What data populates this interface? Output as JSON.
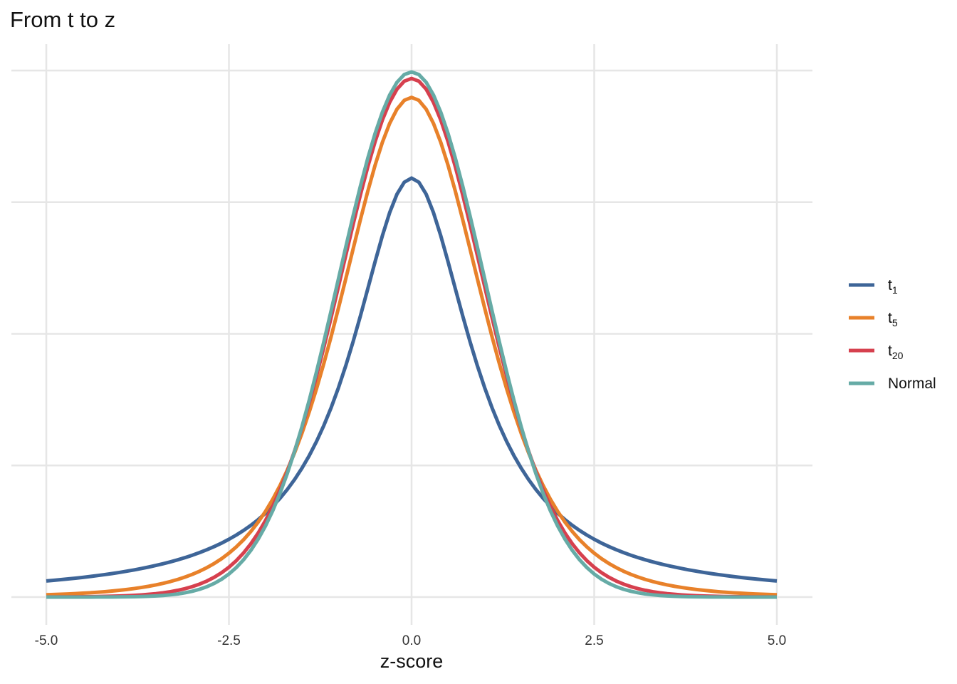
{
  "chart_data": {
    "type": "line",
    "title": "From t to z",
    "xlabel": "z-score",
    "ylabel": "",
    "xlim": [
      -5.0,
      5.0
    ],
    "ylim": [
      0,
      0.4
    ],
    "x_ticks": [
      "-5.0",
      "-2.5",
      "0.0",
      "2.5",
      "5.0"
    ],
    "y_ticks_labeled": false,
    "grid": true,
    "legend_position": "right",
    "x_range": [
      -5.0,
      5.0
    ],
    "series": [
      {
        "name": "t",
        "sub": "1",
        "dist": "t",
        "df": 1,
        "color": "#3e6598"
      },
      {
        "name": "t",
        "sub": "5",
        "dist": "t",
        "df": 5,
        "color": "#e8812a"
      },
      {
        "name": "t",
        "sub": "20",
        "dist": "t",
        "df": 20,
        "color": "#d6404e"
      },
      {
        "name": "Normal",
        "sub": "",
        "dist": "normal",
        "df": null,
        "color": "#66aba6"
      }
    ]
  }
}
